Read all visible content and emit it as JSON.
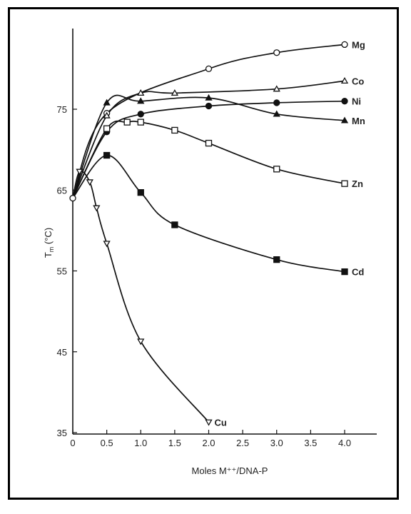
{
  "chart_data": {
    "type": "line",
    "title": "",
    "xlabel": "Moles M⁺⁺/DNA-P",
    "ylabel": "T",
    "ylabel_sub": "m",
    "ylabel_unit": " (°C)",
    "xlim": [
      0,
      4.5
    ],
    "ylim": [
      35,
      87
    ],
    "x_ticks": [
      "0",
      "0.5",
      "1.0",
      "1.5",
      "2.0",
      "2.5",
      "3.0",
      "3.5",
      "4.0"
    ],
    "y_ticks": [
      "35",
      "45",
      "55",
      "65",
      "75"
    ],
    "grid": false,
    "series": [
      {
        "name": "Mg",
        "marker": "circle-open",
        "points": [
          [
            0,
            64
          ],
          [
            0.5,
            74.5
          ],
          [
            2.0,
            80
          ],
          [
            3.0,
            82
          ],
          [
            4.0,
            83
          ]
        ]
      },
      {
        "name": "Co",
        "marker": "triangle-open",
        "points": [
          [
            0,
            64
          ],
          [
            0.5,
            74.2
          ],
          [
            1.0,
            77
          ],
          [
            1.5,
            77
          ],
          [
            3.0,
            77.5
          ],
          [
            4.0,
            78.5
          ]
        ]
      },
      {
        "name": "Ni",
        "marker": "circle-filled",
        "points": [
          [
            0,
            64
          ],
          [
            0.5,
            72.2
          ],
          [
            1.0,
            74.4
          ],
          [
            2.0,
            75.4
          ],
          [
            3.0,
            75.8
          ],
          [
            4.0,
            76
          ]
        ]
      },
      {
        "name": "Mn",
        "marker": "triangle-filled",
        "points": [
          [
            0,
            64
          ],
          [
            0.5,
            75.8
          ],
          [
            1.0,
            76
          ],
          [
            2.0,
            76.4
          ],
          [
            3.0,
            74.4
          ],
          [
            4.0,
            73.6
          ]
        ]
      },
      {
        "name": "Zn",
        "marker": "square-open",
        "points": [
          [
            0,
            64
          ],
          [
            0.5,
            72.6
          ],
          [
            0.8,
            73.4
          ],
          [
            1.0,
            73.4
          ],
          [
            1.5,
            72.4
          ],
          [
            2.0,
            70.8
          ],
          [
            3.0,
            67.6
          ],
          [
            4.0,
            65.8
          ]
        ]
      },
      {
        "name": "Cd",
        "marker": "square-filled",
        "points": [
          [
            0,
            64
          ],
          [
            0.5,
            69.3
          ],
          [
            1.0,
            64.7
          ],
          [
            1.5,
            60.7
          ],
          [
            3.0,
            56.4
          ],
          [
            4.0,
            54.9
          ]
        ]
      },
      {
        "name": "Cu",
        "marker": "triangle-down-open",
        "points": [
          [
            0,
            64
          ],
          [
            0.1,
            67.3
          ],
          [
            0.25,
            66
          ],
          [
            0.35,
            62.8
          ],
          [
            0.5,
            58.4
          ],
          [
            1.0,
            46.3
          ],
          [
            2.0,
            36.3
          ]
        ]
      }
    ]
  }
}
